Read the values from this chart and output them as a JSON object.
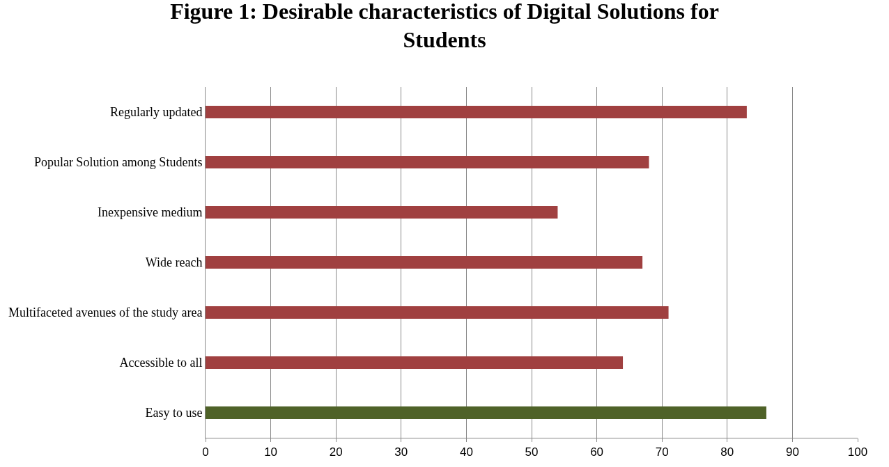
{
  "chart_data": {
    "type": "bar",
    "orientation": "horizontal",
    "title": "Figure 1: Desirable characteristics of Digital Solutions for Students",
    "categories": [
      "Regularly updated",
      "Popular Solution among Students",
      "Inexpensive medium",
      "Wide reach",
      "Multifaceted avenues of the study area",
      "Accessible to all",
      "Easy to use"
    ],
    "values": [
      83,
      68,
      54,
      67,
      71,
      64,
      86
    ],
    "colors": [
      "#a04040",
      "#a04040",
      "#a04040",
      "#a04040",
      "#a04040",
      "#a04040",
      "#4f6228"
    ],
    "xlim": [
      0,
      100
    ],
    "xticks": [
      0,
      10,
      20,
      30,
      40,
      50,
      60,
      70,
      80,
      90,
      100
    ],
    "grid": "x"
  }
}
